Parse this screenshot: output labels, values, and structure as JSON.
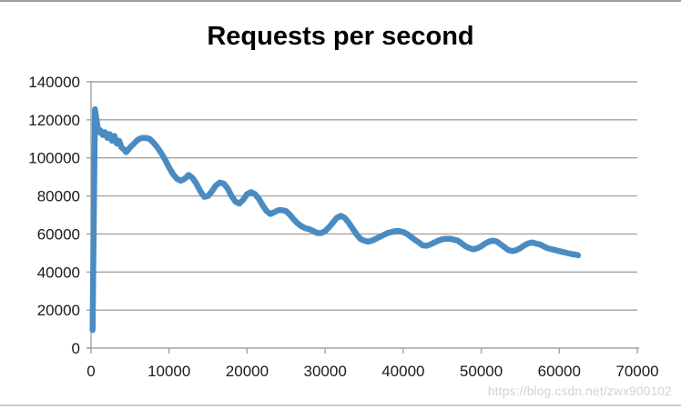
{
  "title": "Requests per second",
  "watermark": "https://blog.csdn.net/zwx900102",
  "colors": {
    "line": "#4a8bc2",
    "gridline": "#a3a3a3",
    "axis": "#a3a3a3",
    "tick_text": "#1a1a1a",
    "title_text": "#000000",
    "watermark_text": "#cdd2d9",
    "top_border": "#9d9d9d",
    "bottom_border": "#cccccc"
  },
  "chart_data": {
    "type": "line",
    "title": "Requests per second",
    "xlabel": "",
    "ylabel": "",
    "xlim": [
      0,
      70000
    ],
    "ylim": [
      0,
      140000
    ],
    "x_ticks": [
      0,
      10000,
      20000,
      30000,
      40000,
      50000,
      60000,
      70000
    ],
    "y_ticks": [
      0,
      20000,
      40000,
      60000,
      80000,
      100000,
      120000,
      140000
    ],
    "grid": "horizontal-only",
    "legend": "none",
    "series": [
      {
        "name": "Requests per second",
        "color": "#4a8bc2",
        "points": [
          [
            200,
            9500
          ],
          [
            500,
            125500
          ],
          [
            800,
            117000
          ],
          [
            1000,
            113500
          ],
          [
            1200,
            114500
          ],
          [
            1500,
            112000
          ],
          [
            1800,
            113500
          ],
          [
            2100,
            110500
          ],
          [
            2400,
            112500
          ],
          [
            2700,
            109000
          ],
          [
            3000,
            111500
          ],
          [
            3300,
            107500
          ],
          [
            3600,
            109000
          ],
          [
            3900,
            105500
          ],
          [
            4200,
            104500
          ],
          [
            4500,
            103000
          ],
          [
            5000,
            105500
          ],
          [
            5500,
            107500
          ],
          [
            6000,
            109500
          ],
          [
            6500,
            110500
          ],
          [
            7000,
            110500
          ],
          [
            7500,
            110000
          ],
          [
            8000,
            108000
          ],
          [
            8500,
            105500
          ],
          [
            9000,
            102500
          ],
          [
            9500,
            99000
          ],
          [
            10000,
            95000
          ],
          [
            10500,
            91500
          ],
          [
            11000,
            89000
          ],
          [
            11500,
            88000
          ],
          [
            12000,
            89000
          ],
          [
            12500,
            91000
          ],
          [
            13000,
            89500
          ],
          [
            13500,
            86500
          ],
          [
            14000,
            82500
          ],
          [
            14500,
            79500
          ],
          [
            15000,
            80000
          ],
          [
            15500,
            82500
          ],
          [
            16000,
            85500
          ],
          [
            16500,
            87000
          ],
          [
            17000,
            86500
          ],
          [
            17500,
            84000
          ],
          [
            18000,
            80000
          ],
          [
            18500,
            77000
          ],
          [
            19000,
            76000
          ],
          [
            19500,
            78000
          ],
          [
            20000,
            81000
          ],
          [
            20500,
            82000
          ],
          [
            21000,
            81000
          ],
          [
            21500,
            78500
          ],
          [
            22000,
            75000
          ],
          [
            22500,
            72000
          ],
          [
            23000,
            70500
          ],
          [
            23500,
            71500
          ],
          [
            24000,
            72500
          ],
          [
            24500,
            72500
          ],
          [
            25000,
            72000
          ],
          [
            25500,
            70000
          ],
          [
            26000,
            67500
          ],
          [
            26500,
            65500
          ],
          [
            27000,
            64000
          ],
          [
            27500,
            63000
          ],
          [
            28000,
            62500
          ],
          [
            28500,
            61500
          ],
          [
            29000,
            60500
          ],
          [
            29500,
            60500
          ],
          [
            30000,
            61500
          ],
          [
            30500,
            63500
          ],
          [
            31000,
            66000
          ],
          [
            31500,
            68500
          ],
          [
            32000,
            69500
          ],
          [
            32500,
            68500
          ],
          [
            33000,
            66000
          ],
          [
            33500,
            63000
          ],
          [
            34000,
            60000
          ],
          [
            34500,
            57500
          ],
          [
            35000,
            56500
          ],
          [
            35500,
            56000
          ],
          [
            36000,
            56500
          ],
          [
            36500,
            57500
          ],
          [
            37000,
            58500
          ],
          [
            37500,
            59500
          ],
          [
            38000,
            60500
          ],
          [
            38500,
            61000
          ],
          [
            39000,
            61500
          ],
          [
            39500,
            61500
          ],
          [
            40000,
            61000
          ],
          [
            40500,
            60000
          ],
          [
            41000,
            58500
          ],
          [
            41500,
            57000
          ],
          [
            42000,
            55500
          ],
          [
            42500,
            54000
          ],
          [
            43000,
            53800
          ],
          [
            43500,
            54500
          ],
          [
            44000,
            55500
          ],
          [
            44500,
            56500
          ],
          [
            45000,
            57200
          ],
          [
            45500,
            57500
          ],
          [
            46000,
            57500
          ],
          [
            46500,
            57000
          ],
          [
            47000,
            56500
          ],
          [
            47500,
            55000
          ],
          [
            48000,
            53500
          ],
          [
            48500,
            52500
          ],
          [
            49000,
            52000
          ],
          [
            49500,
            52500
          ],
          [
            50000,
            53500
          ],
          [
            50500,
            55000
          ],
          [
            51000,
            56000
          ],
          [
            51500,
            56500
          ],
          [
            52000,
            56000
          ],
          [
            52500,
            54500
          ],
          [
            53000,
            53000
          ],
          [
            53500,
            51500
          ],
          [
            54000,
            51000
          ],
          [
            54500,
            51500
          ],
          [
            55000,
            52500
          ],
          [
            55500,
            54000
          ],
          [
            56000,
            55000
          ],
          [
            56500,
            55500
          ],
          [
            57000,
            55000
          ],
          [
            57500,
            54500
          ],
          [
            58000,
            53500
          ],
          [
            58500,
            52500
          ],
          [
            59000,
            52000
          ],
          [
            59500,
            51500
          ],
          [
            60000,
            51000
          ],
          [
            60500,
            50500
          ],
          [
            61000,
            50000
          ],
          [
            61500,
            49500
          ],
          [
            62000,
            49200
          ],
          [
            62400,
            48800
          ]
        ]
      }
    ]
  }
}
